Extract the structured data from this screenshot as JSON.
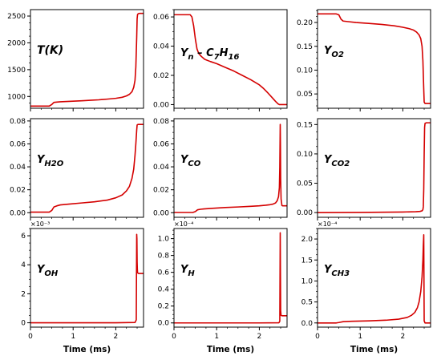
{
  "figure": {
    "x_title": "Time (ms)"
  },
  "chart_data": [
    {
      "type": "line",
      "label": "T(K)",
      "label_parts": [
        {
          "t": "T(K)",
          "sub": false
        }
      ],
      "ylim": [
        780,
        2620
      ],
      "yticks": [
        1000,
        1500,
        2000,
        2500
      ],
      "ytick_labels": [
        "1000",
        "1500",
        "2000",
        "2500"
      ],
      "multiplier": "",
      "xlim": [
        0,
        2.65
      ],
      "xticks": [
        0,
        1,
        2
      ],
      "xtick_labels": [
        "",
        "",
        ""
      ],
      "series": [
        {
          "color": "#d40000",
          "x": [
            0,
            0.44,
            0.5,
            0.55,
            0.62,
            0.7,
            0.8,
            1.0,
            1.2,
            1.4,
            1.6,
            1.8,
            2.0,
            2.15,
            2.25,
            2.32,
            2.38,
            2.42,
            2.45,
            2.47,
            2.49,
            2.5,
            2.51,
            2.53,
            2.56,
            2.65
          ],
          "y": [
            820,
            820,
            850,
            890,
            895,
            900,
            905,
            912,
            920,
            928,
            937,
            950,
            965,
            985,
            1010,
            1040,
            1090,
            1170,
            1300,
            1550,
            2100,
            2450,
            2530,
            2545,
            2550,
            2550
          ]
        }
      ]
    },
    {
      "type": "line",
      "label": "Y_n-C7H16",
      "label_parts": [
        {
          "t": "Y",
          "sub": false
        },
        {
          "t": "n",
          "sub": true
        },
        {
          "t": " – C",
          "sub": false
        },
        {
          "t": "7",
          "sub": true
        },
        {
          "t": "H",
          "sub": false
        },
        {
          "t": "16",
          "sub": true
        }
      ],
      "ylim": [
        -0.0025,
        0.065
      ],
      "yticks": [
        0.0,
        0.02,
        0.04,
        0.06
      ],
      "ytick_labels": [
        "0.00",
        "0.02",
        "0.04",
        "0.06"
      ],
      "multiplier": "",
      "xlim": [
        0,
        2.65
      ],
      "xticks": [
        0,
        1,
        2
      ],
      "xtick_labels": [
        "",
        "",
        ""
      ],
      "series": [
        {
          "color": "#d40000",
          "x": [
            0,
            0.38,
            0.42,
            0.46,
            0.5,
            0.54,
            0.58,
            0.64,
            0.72,
            0.85,
            1.0,
            1.2,
            1.4,
            1.6,
            1.8,
            2.0,
            2.1,
            2.2,
            2.3,
            2.38,
            2.44,
            2.47,
            2.5,
            2.65
          ],
          "y": [
            0.0615,
            0.0615,
            0.06,
            0.054,
            0.045,
            0.038,
            0.035,
            0.033,
            0.031,
            0.0295,
            0.028,
            0.0255,
            0.023,
            0.02,
            0.017,
            0.0135,
            0.011,
            0.008,
            0.0048,
            0.0022,
            0.0005,
            0.0,
            0.0,
            0.0
          ]
        }
      ]
    },
    {
      "type": "line",
      "label": "Y_O2",
      "label_parts": [
        {
          "t": "Y",
          "sub": false
        },
        {
          "t": "O",
          "sub": true
        },
        {
          "t": "2",
          "sub": true
        }
      ],
      "ylim": [
        0.02,
        0.227
      ],
      "yticks": [
        0.05,
        0.1,
        0.15,
        0.2
      ],
      "ytick_labels": [
        "0.05",
        "0.10",
        "0.15",
        "0.20"
      ],
      "multiplier": "",
      "xlim": [
        0,
        2.65
      ],
      "xticks": [
        0,
        1,
        2
      ],
      "xtick_labels": [
        "",
        "",
        ""
      ],
      "series": [
        {
          "color": "#d40000",
          "x": [
            0,
            0.44,
            0.5,
            0.55,
            0.6,
            0.7,
            0.9,
            1.2,
            1.5,
            1.8,
            2.0,
            2.15,
            2.25,
            2.32,
            2.38,
            2.42,
            2.45,
            2.47,
            2.49,
            2.5,
            2.52,
            2.55,
            2.65
          ],
          "y": [
            0.218,
            0.218,
            0.216,
            0.207,
            0.203,
            0.202,
            0.2,
            0.198,
            0.196,
            0.193,
            0.19,
            0.187,
            0.184,
            0.18,
            0.174,
            0.166,
            0.15,
            0.12,
            0.06,
            0.033,
            0.03,
            0.03,
            0.03
          ]
        }
      ]
    },
    {
      "type": "line",
      "label": "Y_H2O",
      "label_parts": [
        {
          "t": "Y",
          "sub": false
        },
        {
          "t": "H",
          "sub": true
        },
        {
          "t": "2",
          "sub": true
        },
        {
          "t": "O",
          "sub": true
        }
      ],
      "ylim": [
        -0.004,
        0.082
      ],
      "yticks": [
        0.0,
        0.02,
        0.04,
        0.06,
        0.08
      ],
      "ytick_labels": [
        "0.00",
        "0.02",
        "0.04",
        "0.06",
        "0.08"
      ],
      "multiplier": "",
      "xlim": [
        0,
        2.65
      ],
      "xticks": [
        0,
        1,
        2
      ],
      "xtick_labels": [
        "",
        "",
        ""
      ],
      "series": [
        {
          "color": "#d40000",
          "x": [
            0,
            0.44,
            0.5,
            0.55,
            0.62,
            0.7,
            0.9,
            1.2,
            1.5,
            1.8,
            2.0,
            2.15,
            2.25,
            2.32,
            2.38,
            2.42,
            2.45,
            2.47,
            2.49,
            2.5,
            2.52,
            2.55,
            2.65
          ],
          "y": [
            0.0005,
            0.0005,
            0.002,
            0.005,
            0.006,
            0.0068,
            0.0075,
            0.0085,
            0.0095,
            0.011,
            0.013,
            0.0155,
            0.019,
            0.023,
            0.03,
            0.038,
            0.05,
            0.06,
            0.072,
            0.0765,
            0.077,
            0.077,
            0.077
          ]
        }
      ]
    },
    {
      "type": "line",
      "label": "Y_CO",
      "label_parts": [
        {
          "t": "Y",
          "sub": false
        },
        {
          "t": "CO",
          "sub": true
        }
      ],
      "ylim": [
        -0.004,
        0.082
      ],
      "yticks": [
        0.0,
        0.02,
        0.04,
        0.06,
        0.08
      ],
      "ytick_labels": [
        "0.00",
        "0.02",
        "0.04",
        "0.06",
        "0.08"
      ],
      "multiplier": "",
      "xlim": [
        0,
        2.65
      ],
      "xticks": [
        0,
        1,
        2
      ],
      "xtick_labels": [
        "",
        "",
        ""
      ],
      "series": [
        {
          "color": "#d40000",
          "x": [
            0,
            0.44,
            0.5,
            0.55,
            0.62,
            0.7,
            0.9,
            1.2,
            1.5,
            1.8,
            2.0,
            2.15,
            2.25,
            2.32,
            2.38,
            2.42,
            2.45,
            2.47,
            2.48,
            2.49,
            2.495,
            2.5,
            2.51,
            2.53,
            2.55,
            2.65
          ],
          "y": [
            0.0002,
            0.0002,
            0.001,
            0.0025,
            0.003,
            0.0033,
            0.0038,
            0.0045,
            0.005,
            0.0056,
            0.006,
            0.0065,
            0.007,
            0.0075,
            0.0085,
            0.0105,
            0.014,
            0.022,
            0.04,
            0.077,
            0.06,
            0.03,
            0.012,
            0.0062,
            0.006,
            0.006
          ]
        }
      ]
    },
    {
      "type": "line",
      "label": "Y_CO2",
      "label_parts": [
        {
          "t": "Y",
          "sub": false
        },
        {
          "t": "CO",
          "sub": true
        },
        {
          "t": "2",
          "sub": true
        }
      ],
      "ylim": [
        -0.008,
        0.16
      ],
      "yticks": [
        0.0,
        0.05,
        0.1,
        0.15
      ],
      "ytick_labels": [
        "0.00",
        "0.05",
        "0.10",
        "0.15"
      ],
      "multiplier": "",
      "xlim": [
        0,
        2.65
      ],
      "xticks": [
        0,
        1,
        2
      ],
      "xtick_labels": [
        "",
        "",
        ""
      ],
      "series": [
        {
          "color": "#d40000",
          "x": [
            0,
            0.5,
            1.0,
            1.5,
            2.0,
            2.3,
            2.4,
            2.45,
            2.47,
            2.48,
            2.49,
            2.5,
            2.51,
            2.52,
            2.55,
            2.65
          ],
          "y": [
            0.0,
            0.0001,
            0.0003,
            0.0006,
            0.001,
            0.0015,
            0.002,
            0.003,
            0.005,
            0.01,
            0.04,
            0.1,
            0.145,
            0.152,
            0.153,
            0.153
          ]
        }
      ]
    },
    {
      "type": "line",
      "label": "Y_OH",
      "label_parts": [
        {
          "t": "Y",
          "sub": false
        },
        {
          "t": "OH",
          "sub": true
        }
      ],
      "ylim": [
        -0.3,
        6.5
      ],
      "yticks": [
        0,
        2,
        4,
        6
      ],
      "ytick_labels": [
        "0",
        "2",
        "4",
        "6"
      ],
      "multiplier": "×10⁻³",
      "xlim": [
        0,
        2.65
      ],
      "xticks": [
        0,
        1,
        2
      ],
      "xtick_labels": [
        "0",
        "1",
        "2"
      ],
      "series": [
        {
          "color": "#d40000",
          "x": [
            0,
            1.0,
            2.0,
            2.45,
            2.48,
            2.49,
            2.495,
            2.5,
            2.505,
            2.51,
            2.53,
            2.56,
            2.65
          ],
          "y": [
            0,
            0,
            0,
            0.02,
            0.2,
            6.1,
            5.8,
            4.2,
            3.7,
            3.45,
            3.4,
            3.4,
            3.4
          ]
        }
      ]
    },
    {
      "type": "line",
      "label": "Y_H",
      "label_parts": [
        {
          "t": "Y",
          "sub": false
        },
        {
          "t": "H",
          "sub": true
        }
      ],
      "ylim": [
        -0.05,
        1.12
      ],
      "yticks": [
        0.0,
        0.2,
        0.4,
        0.6,
        0.8,
        1.0
      ],
      "ytick_labels": [
        "0.0",
        "0.2",
        "0.4",
        "0.6",
        "0.8",
        "1.0"
      ],
      "multiplier": "×10⁻⁴",
      "xlim": [
        0,
        2.65
      ],
      "xticks": [
        0,
        1,
        2
      ],
      "xtick_labels": [
        "0",
        "1",
        "2"
      ],
      "series": [
        {
          "color": "#d40000",
          "x": [
            0,
            1.0,
            2.0,
            2.46,
            2.48,
            2.49,
            2.495,
            2.5,
            2.51,
            2.53,
            2.56,
            2.65
          ],
          "y": [
            0,
            0,
            0,
            0.002,
            0.02,
            1.07,
            0.6,
            0.15,
            0.09,
            0.085,
            0.085,
            0.085
          ]
        }
      ]
    },
    {
      "type": "line",
      "label": "Y_CH3",
      "label_parts": [
        {
          "t": "Y",
          "sub": false
        },
        {
          "t": "CH",
          "sub": true
        },
        {
          "t": "3",
          "sub": true
        }
      ],
      "ylim": [
        -0.1,
        2.25
      ],
      "yticks": [
        0.0,
        0.5,
        1.0,
        1.5,
        2.0
      ],
      "ytick_labels": [
        "0.0",
        "0.5",
        "1.0",
        "1.5",
        "2.0"
      ],
      "multiplier": "×10⁻⁴",
      "xlim": [
        0,
        2.65
      ],
      "xticks": [
        0,
        1,
        2
      ],
      "xtick_labels": [
        "0",
        "1",
        "2"
      ],
      "series": [
        {
          "color": "#d40000",
          "x": [
            0,
            0.44,
            0.5,
            0.6,
            0.8,
            1.2,
            1.6,
            1.9,
            2.1,
            2.2,
            2.28,
            2.34,
            2.38,
            2.42,
            2.45,
            2.47,
            2.48,
            2.49,
            2.5,
            2.52,
            2.65
          ],
          "y": [
            0.0,
            0.0,
            0.01,
            0.03,
            0.04,
            0.05,
            0.065,
            0.09,
            0.13,
            0.18,
            0.25,
            0.36,
            0.5,
            0.75,
            1.1,
            1.5,
            1.85,
            2.1,
            0.05,
            0.0,
            0.0
          ]
        }
      ]
    }
  ]
}
